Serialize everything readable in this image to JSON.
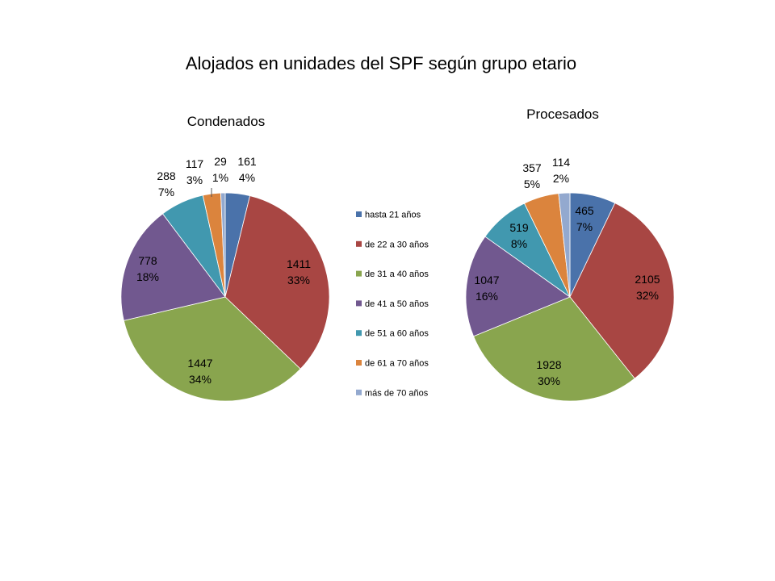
{
  "title": "Alojados en unidades del SPF según grupo etario",
  "legend": {
    "position": "center",
    "entries": [
      {
        "label": "hasta 21 años",
        "color": "#4A72AA"
      },
      {
        "label": "de 22 a 30 años",
        "color": "#A84643"
      },
      {
        "label": "de 31 a 40 años",
        "color": "#89A54E"
      },
      {
        "label": "de 41 a 50 años",
        "color": "#71588F"
      },
      {
        "label": "de 51 a 60 años",
        "color": "#4198AF"
      },
      {
        "label": "de 61 a 70 años",
        "color": "#DB843D"
      },
      {
        "label": "más de 70 años",
        "color": "#93A9CF"
      }
    ]
  },
  "chart_data": [
    {
      "type": "pie",
      "title": "Condenados",
      "categories": [
        "hasta 21 años",
        "de 22 a 30 años",
        "de 31 a 40 años",
        "de 41 a 50 años",
        "de 51 a 60 años",
        "de 61 a 70 años",
        "más de 70 años"
      ],
      "values": [
        161,
        1411,
        1447,
        778,
        288,
        117,
        29
      ],
      "percent_labels": [
        "4%",
        "33%",
        "34%",
        "18%",
        "7%",
        "3%",
        "1%"
      ],
      "colors": [
        "#4A72AA",
        "#A84643",
        "#89A54E",
        "#71588F",
        "#4198AF",
        "#DB843D",
        "#93A9CF"
      ],
      "start_angle": "12 o'clock",
      "direction": "clockwise"
    },
    {
      "type": "pie",
      "title": "Procesados",
      "categories": [
        "hasta 21 años",
        "de 22 a 30 años",
        "de 31 a 40 años",
        "de 41 a 50 años",
        "de 51 a 60 años",
        "de 61 a 70 años",
        "más de 70 años"
      ],
      "values": [
        465,
        2105,
        1928,
        1047,
        519,
        357,
        114
      ],
      "percent_labels": [
        "7%",
        "32%",
        "30%",
        "16%",
        "8%",
        "5%",
        "2%"
      ],
      "colors": [
        "#4A72AA",
        "#A84643",
        "#89A54E",
        "#71588F",
        "#4198AF",
        "#DB843D",
        "#93A9CF"
      ],
      "start_angle": "12 o'clock",
      "direction": "clockwise"
    }
  ]
}
